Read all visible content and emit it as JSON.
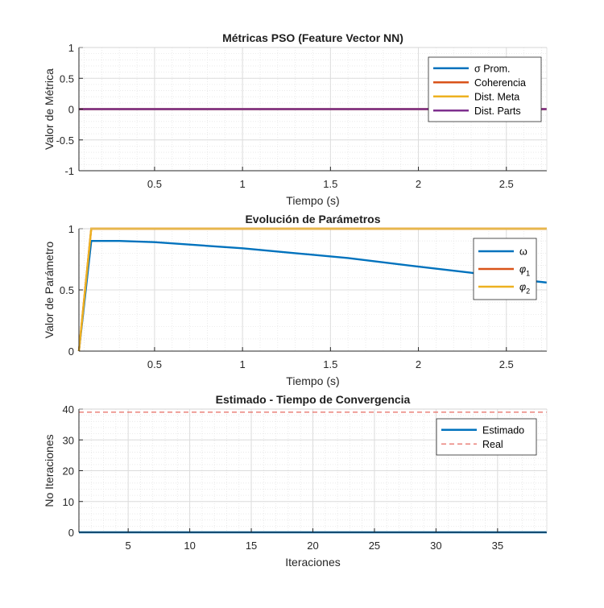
{
  "figure": {
    "background": "#ffffff"
  },
  "chart_data": [
    {
      "type": "line",
      "title": "Métricas PSO (Feature Vector NN)",
      "xlabel": "Tiempo (s)",
      "ylabel": "Valor de Métrica",
      "xlim": [
        0.07,
        2.73
      ],
      "ylim": [
        -1,
        1
      ],
      "xticks": [
        0.5,
        1,
        1.5,
        2,
        2.5
      ],
      "xtick_labels": [
        "0.5",
        "1",
        "1.5",
        "2",
        "2.5"
      ],
      "yticks": [
        1,
        0.5,
        0,
        -0.5,
        -1
      ],
      "ytick_labels": [
        "1",
        "0.5",
        "0",
        "-0.5",
        "-1"
      ],
      "grid": true,
      "minor_grid": true,
      "legend_position": "top-right",
      "series": [
        {
          "name": "σ Prom.",
          "color": "#0072BD",
          "x": [
            0.07,
            2.73
          ],
          "y": [
            0,
            0
          ]
        },
        {
          "name": "Coherencia",
          "color": "#D95319",
          "x": [
            0.07,
            2.73
          ],
          "y": [
            0,
            0
          ]
        },
        {
          "name": "Dist. Meta",
          "color": "#EDB120",
          "x": [
            0.07,
            2.73
          ],
          "y": [
            0,
            0
          ]
        },
        {
          "name": "Dist. Parts",
          "color": "#7E2F8E",
          "x": [
            0.07,
            2.73
          ],
          "y": [
            0,
            0
          ]
        }
      ]
    },
    {
      "type": "line",
      "title": "Evolución de Parámetros",
      "xlabel": "Tiempo (s)",
      "ylabel": "Valor de Parámetro",
      "xlim": [
        0.07,
        2.73
      ],
      "ylim": [
        0,
        1
      ],
      "xticks": [
        0.5,
        1,
        1.5,
        2,
        2.5
      ],
      "xtick_labels": [
        "0.5",
        "1",
        "1.5",
        "2",
        "2.5"
      ],
      "yticks": [
        1,
        0.5,
        0
      ],
      "ytick_labels": [
        "1",
        "0.5",
        "0"
      ],
      "grid": true,
      "minor_grid": true,
      "legend_position": "top-right",
      "series": [
        {
          "name": "ω",
          "color": "#0072BD",
          "x": [
            0.07,
            0.14,
            0.3,
            0.5,
            0.8,
            1.0,
            1.3,
            1.6,
            2.0,
            2.3,
            2.6,
            2.73
          ],
          "y": [
            0,
            0.9,
            0.9,
            0.89,
            0.86,
            0.84,
            0.8,
            0.76,
            0.69,
            0.64,
            0.58,
            0.56
          ]
        },
        {
          "name": "φ1",
          "color": "#D95319",
          "x": [
            0.07,
            0.14,
            2.73
          ],
          "y": [
            0,
            1,
            1
          ]
        },
        {
          "name": "φ2",
          "color": "#EDB120",
          "x": [
            0.07,
            0.14,
            2.73
          ],
          "y": [
            0,
            1,
            1
          ]
        }
      ]
    },
    {
      "type": "line",
      "title": "Estimado - Tiempo de Convergencia",
      "xlabel": "Iteraciones",
      "ylabel": "No Iteraciones",
      "xlim": [
        1,
        39
      ],
      "ylim": [
        0,
        40
      ],
      "xticks": [
        5,
        10,
        15,
        20,
        25,
        30,
        35
      ],
      "xtick_labels": [
        "5",
        "10",
        "15",
        "20",
        "25",
        "30",
        "35"
      ],
      "yticks": [
        40,
        30,
        20,
        10,
        0
      ],
      "ytick_labels": [
        "40",
        "30",
        "20",
        "10",
        "0"
      ],
      "grid": true,
      "minor_grid": true,
      "legend_position": "top-right",
      "series": [
        {
          "name": "Estimado",
          "color": "#0072BD",
          "x": [
            1,
            39
          ],
          "y": [
            0,
            0
          ]
        },
        {
          "name": "Real",
          "color": "#E0453A",
          "dashed": true,
          "x": [
            1,
            39
          ],
          "y": [
            39,
            39
          ]
        }
      ]
    }
  ]
}
